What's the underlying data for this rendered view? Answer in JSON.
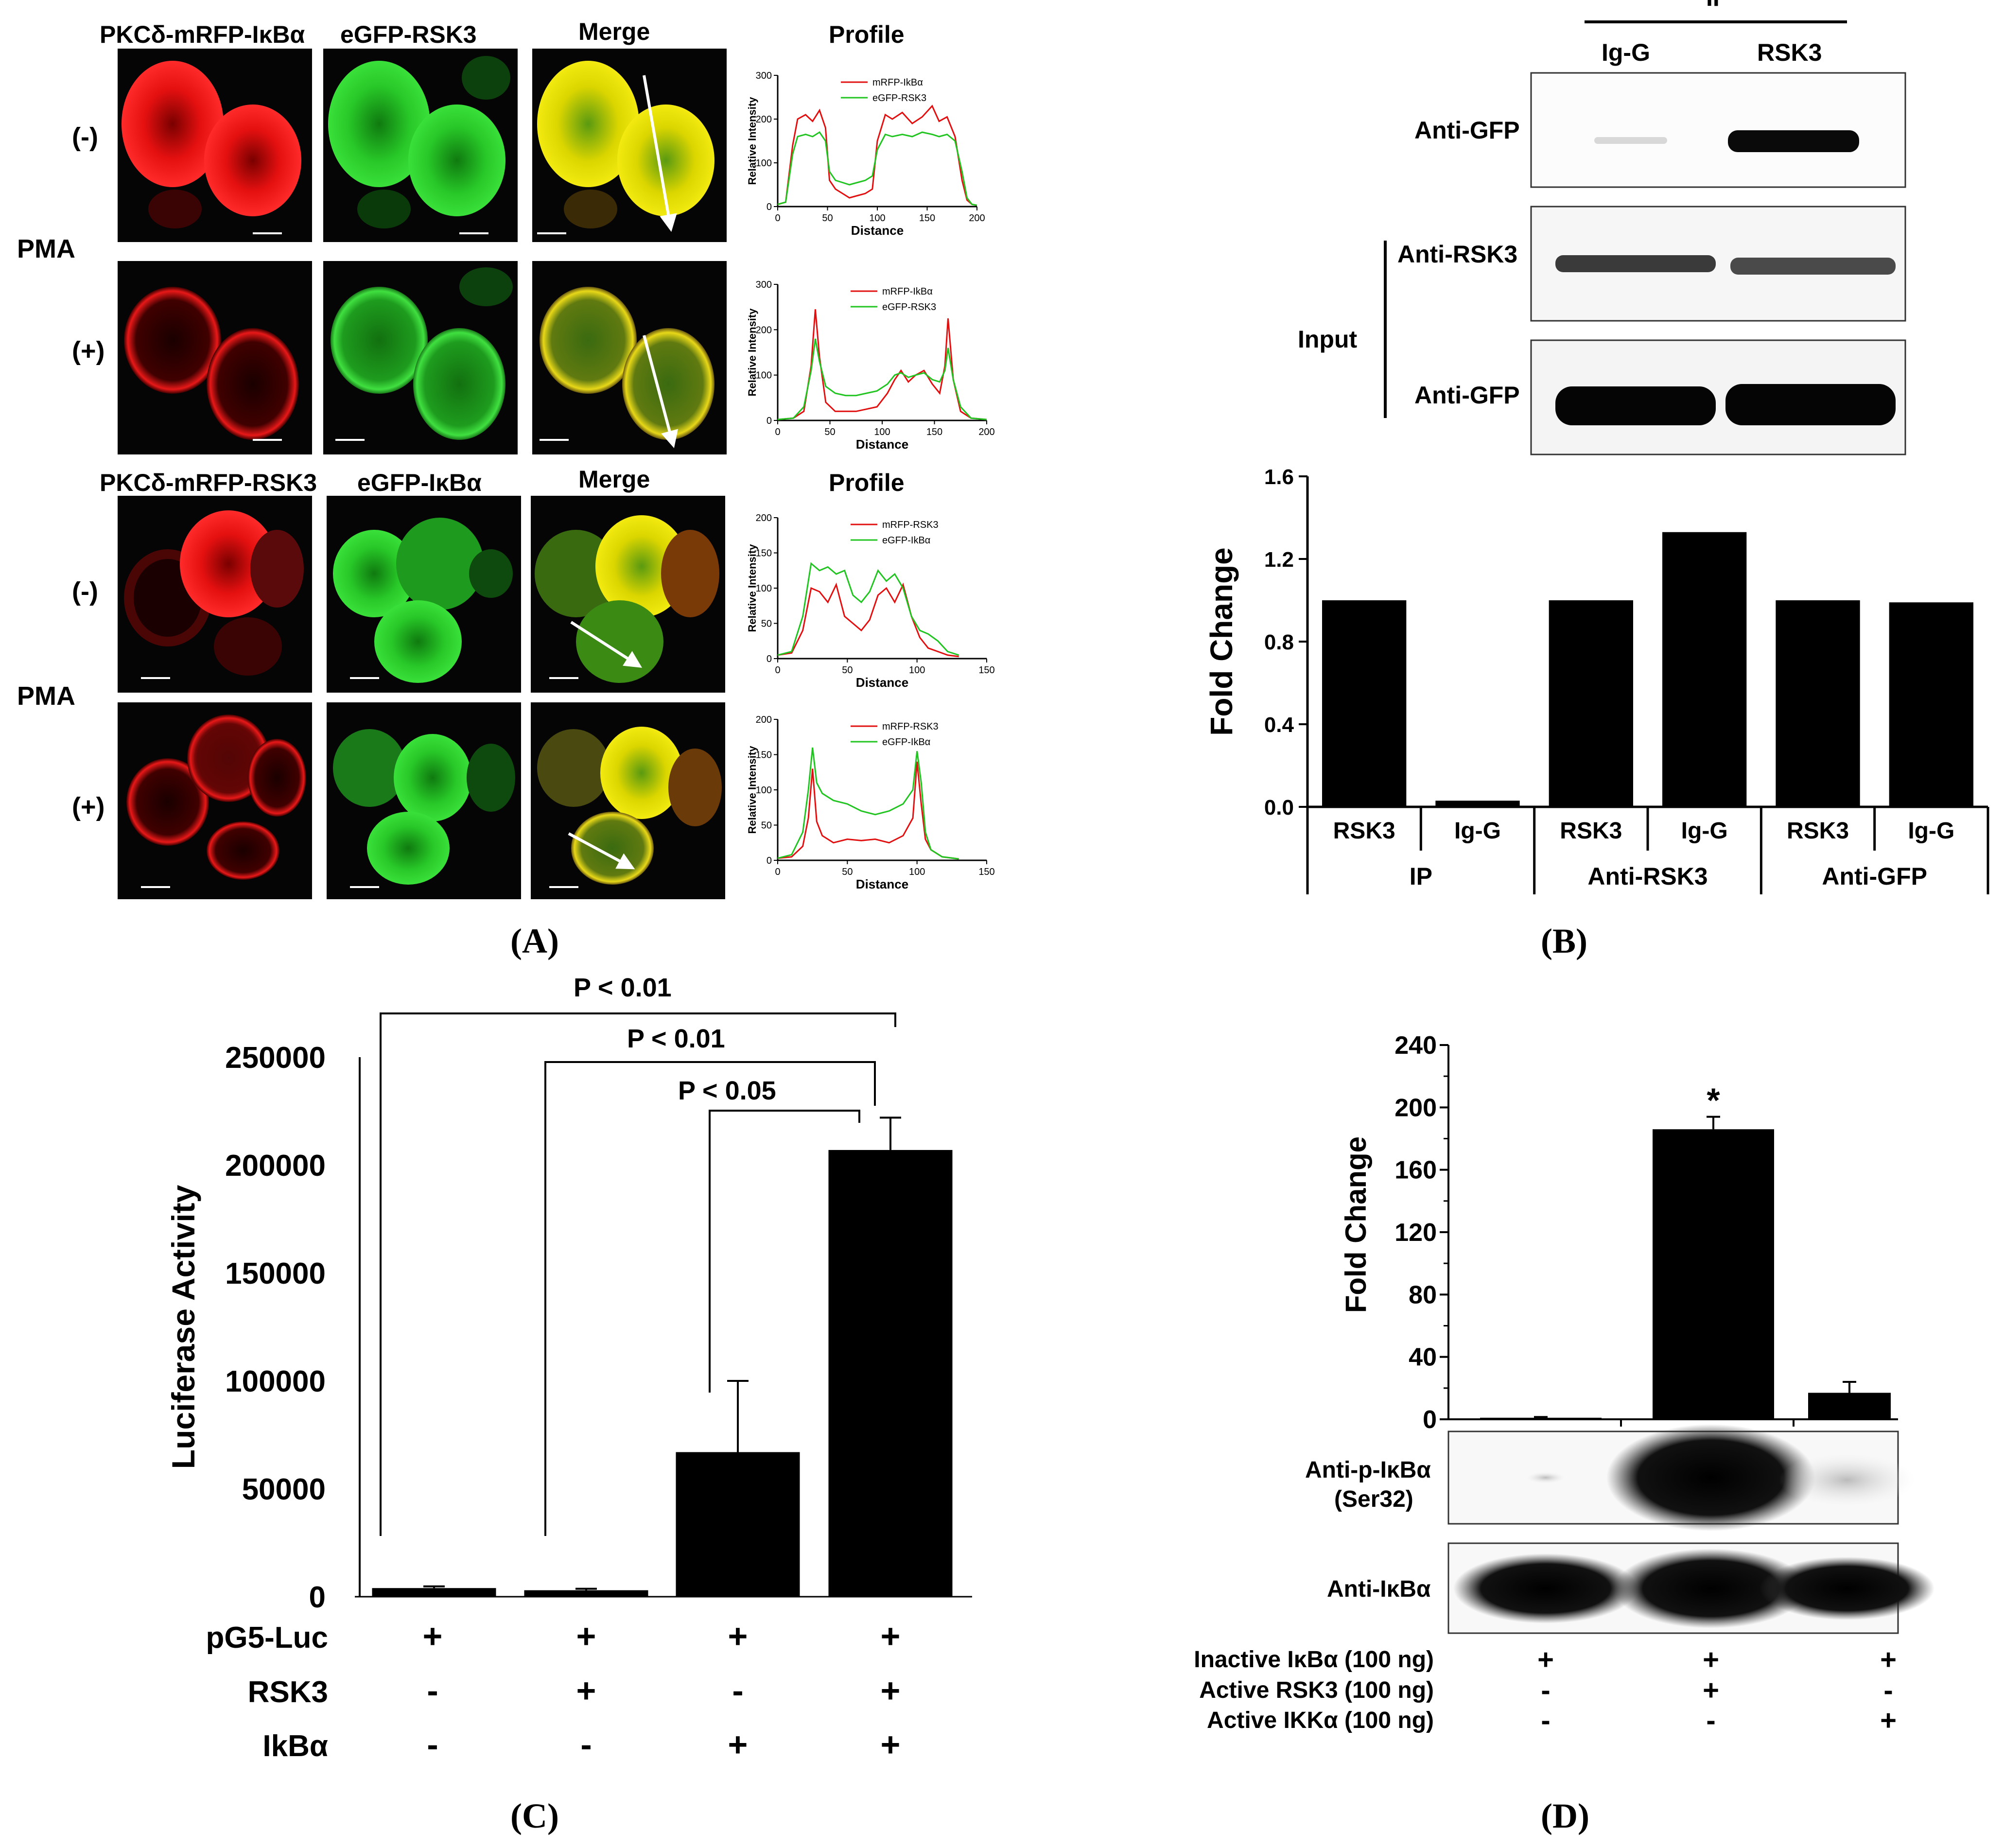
{
  "panel_labels": {
    "a": "(A)",
    "b": "(B)",
    "c": "(C)",
    "d": "(D)"
  },
  "panel_a": {
    "top_set": {
      "headers": [
        "PKCδ-mRFP-IκBα",
        "eGFP-RSK3",
        "Merge",
        "Profile"
      ],
      "treatment": "PMA",
      "row_labels": [
        "(-)",
        "(+)"
      ],
      "legend": [
        "mRFP-IkBα",
        "eGFP-RSK3"
      ]
    },
    "bottom_set": {
      "headers": [
        "PKCδ-mRFP-RSK3",
        "eGFP-IκBα",
        "Merge",
        "Profile"
      ],
      "treatment": "PMA",
      "row_labels": [
        "(-)",
        "(+)"
      ],
      "legend": [
        "mRFP-RSK3",
        "eGFP-IkBα"
      ]
    },
    "profile_ylabel": "Relative Intensity",
    "profile_xlabel": "Distance",
    "colors": {
      "red": "#e01010",
      "green": "#22c422",
      "yellow": "#e8e000",
      "cell_bg": "#0c0c0c"
    }
  },
  "panel_b": {
    "ip_label": "IP",
    "lane_labels": [
      "Ig-G",
      "RSK3"
    ],
    "input_label": "Input",
    "blot_labels": [
      "Anti-GFP",
      "Anti-RSK3",
      "Anti-GFP"
    ]
  },
  "panel_c_labels": {
    "sig": [
      "P < 0.01",
      "P < 0.01",
      "P < 0.05"
    ],
    "rows": [
      {
        "name": "pG5-Luc",
        "marks": [
          "+",
          "+",
          "+",
          "+"
        ]
      },
      {
        "name": "RSK3",
        "marks": [
          "-",
          "+",
          "-",
          "+"
        ]
      },
      {
        "name": "IkBα",
        "marks": [
          "-",
          "-",
          "+",
          "+"
        ]
      }
    ]
  },
  "panel_d_labels": {
    "star": "*",
    "blot_labels": [
      "Anti-p-IκBα",
      "(Ser32)",
      "Anti-IκBα"
    ],
    "rows": [
      {
        "name": "Inactive IκBα (100 ng)",
        "marks": [
          "+",
          "+",
          "+"
        ]
      },
      {
        "name": "Active RSK3 (100 ng)",
        "marks": [
          "-",
          "+",
          "-"
        ]
      },
      {
        "name": "Active IKKα (100 ng)",
        "marks": [
          "-",
          "-",
          "+"
        ]
      }
    ]
  },
  "chart_data": [
    {
      "type": "line",
      "id": "A-top-minus",
      "xlim": [
        0,
        200
      ],
      "ylim": [
        0,
        300
      ],
      "xticks": [
        0,
        50,
        100,
        150,
        200
      ],
      "yticks": [
        0,
        100,
        200,
        300
      ],
      "xlabel": "Distance",
      "ylabel": "Relative Intensity",
      "series": [
        {
          "name": "mRFP-IkBα",
          "color": "#e01010",
          "x": [
            0,
            8,
            15,
            20,
            28,
            35,
            42,
            48,
            52,
            58,
            65,
            72,
            80,
            88,
            95,
            100,
            108,
            115,
            125,
            135,
            145,
            155,
            162,
            170,
            178,
            185,
            190,
            195,
            200
          ],
          "y": [
            5,
            10,
            140,
            200,
            210,
            195,
            220,
            180,
            60,
            40,
            30,
            20,
            25,
            30,
            40,
            150,
            210,
            200,
            215,
            190,
            205,
            230,
            195,
            205,
            160,
            60,
            15,
            5,
            3
          ]
        },
        {
          "name": "eGFP-RSK3",
          "color": "#22c422",
          "x": [
            0,
            8,
            15,
            20,
            28,
            35,
            42,
            48,
            52,
            58,
            65,
            72,
            80,
            88,
            95,
            100,
            108,
            115,
            125,
            135,
            145,
            155,
            162,
            170,
            178,
            185,
            190,
            195,
            200
          ],
          "y": [
            5,
            10,
            120,
            160,
            165,
            160,
            170,
            150,
            80,
            60,
            55,
            50,
            55,
            60,
            70,
            130,
            165,
            160,
            165,
            160,
            170,
            165,
            160,
            165,
            150,
            80,
            20,
            5,
            3
          ]
        }
      ]
    },
    {
      "type": "line",
      "id": "A-top-plus",
      "xlim": [
        0,
        200
      ],
      "ylim": [
        0,
        300
      ],
      "xticks": [
        0,
        50,
        100,
        150,
        200
      ],
      "yticks": [
        0,
        100,
        200,
        300
      ],
      "xlabel": "Distance",
      "ylabel": "Relative Intensity",
      "series": [
        {
          "name": "mRFP-IkBα",
          "color": "#e01010",
          "x": [
            0,
            15,
            25,
            32,
            36,
            40,
            46,
            55,
            65,
            75,
            85,
            95,
            105,
            112,
            118,
            125,
            132,
            140,
            148,
            155,
            160,
            163,
            168,
            175,
            185,
            200
          ],
          "y": [
            2,
            5,
            20,
            120,
            245,
            140,
            40,
            20,
            20,
            20,
            25,
            30,
            60,
            90,
            110,
            85,
            100,
            110,
            80,
            60,
            120,
            225,
            90,
            20,
            5,
            2
          ]
        },
        {
          "name": "eGFP-RSK3",
          "color": "#22c422",
          "x": [
            0,
            15,
            25,
            32,
            36,
            40,
            46,
            55,
            65,
            75,
            85,
            95,
            105,
            112,
            118,
            125,
            132,
            140,
            148,
            155,
            160,
            163,
            168,
            175,
            185,
            200
          ],
          "y": [
            2,
            5,
            30,
            110,
            180,
            130,
            75,
            60,
            55,
            55,
            60,
            65,
            80,
            100,
            105,
            95,
            100,
            105,
            90,
            85,
            110,
            160,
            90,
            30,
            5,
            2
          ]
        }
      ]
    },
    {
      "type": "line",
      "id": "A-bottom-minus",
      "xlim": [
        0,
        150
      ],
      "ylim": [
        0,
        200
      ],
      "xticks": [
        0,
        50,
        100,
        150
      ],
      "yticks": [
        0,
        50,
        100,
        150,
        200
      ],
      "xlabel": "Distance",
      "ylabel": "Relative Intensity",
      "series": [
        {
          "name": "mRFP-RSK3",
          "color": "#e01010",
          "x": [
            0,
            10,
            18,
            24,
            30,
            36,
            42,
            48,
            54,
            60,
            66,
            72,
            78,
            84,
            90,
            96,
            102,
            108,
            115,
            122,
            130
          ],
          "y": [
            5,
            8,
            40,
            100,
            95,
            80,
            105,
            60,
            50,
            40,
            55,
            90,
            100,
            80,
            105,
            60,
            30,
            15,
            10,
            5,
            3
          ]
        },
        {
          "name": "eGFP-IkBα",
          "color": "#22c422",
          "x": [
            0,
            10,
            18,
            24,
            30,
            36,
            42,
            48,
            54,
            60,
            66,
            72,
            78,
            84,
            90,
            96,
            102,
            108,
            115,
            122,
            130
          ],
          "y": [
            5,
            10,
            60,
            135,
            125,
            130,
            120,
            125,
            90,
            80,
            95,
            125,
            110,
            120,
            100,
            60,
            40,
            35,
            25,
            10,
            5
          ]
        }
      ]
    },
    {
      "type": "line",
      "id": "A-bottom-plus",
      "xlim": [
        0,
        150
      ],
      "ylim": [
        0,
        200
      ],
      "xticks": [
        0,
        50,
        100,
        150
      ],
      "yticks": [
        0,
        50,
        100,
        150,
        200
      ],
      "xlabel": "Distance",
      "ylabel": "Relative Intensity",
      "series": [
        {
          "name": "mRFP-RSK3",
          "color": "#e01010",
          "x": [
            0,
            10,
            18,
            22,
            25,
            28,
            32,
            40,
            50,
            60,
            70,
            80,
            90,
            97,
            100,
            103,
            106,
            110,
            118,
            130
          ],
          "y": [
            3,
            5,
            20,
            60,
            130,
            55,
            35,
            25,
            30,
            28,
            30,
            25,
            35,
            60,
            140,
            80,
            30,
            15,
            5,
            2
          ]
        },
        {
          "name": "eGFP-IkBα",
          "color": "#22c422",
          "x": [
            0,
            10,
            18,
            22,
            25,
            28,
            32,
            40,
            50,
            60,
            70,
            80,
            90,
            97,
            100,
            103,
            106,
            110,
            118,
            130
          ],
          "y": [
            3,
            8,
            40,
            100,
            160,
            110,
            95,
            85,
            80,
            70,
            65,
            70,
            80,
            100,
            155,
            110,
            40,
            15,
            5,
            2
          ]
        }
      ]
    },
    {
      "type": "bar",
      "id": "B",
      "ylabel": "Fold Change",
      "ylim": [
        0,
        1.6
      ],
      "yticks": [
        0.0,
        0.4,
        0.8,
        1.2,
        1.6
      ],
      "categories": [
        "RSK3",
        "Ig-G",
        "RSK3",
        "Ig-G",
        "RSK3",
        "Ig-G"
      ],
      "groups": [
        "IP",
        "Anti-RSK3",
        "Anti-GFP"
      ],
      "values": [
        1.0,
        0.03,
        1.0,
        1.33,
        1.0,
        0.99
      ],
      "color": "#000000"
    },
    {
      "type": "bar",
      "id": "C",
      "ylabel": "Luciferase Activity",
      "ylim": [
        0,
        250000
      ],
      "yticks": [
        0,
        50000,
        100000,
        150000,
        200000,
        250000
      ],
      "values": [
        4000,
        3000,
        67000,
        207000
      ],
      "errors": [
        800,
        700,
        33000,
        15000
      ],
      "color": "#000000"
    },
    {
      "type": "bar",
      "id": "D",
      "ylabel": "Fold Change",
      "ylim": [
        0,
        240
      ],
      "yticks": [
        0,
        40,
        80,
        120,
        160,
        200,
        240
      ],
      "values": [
        1,
        186,
        17
      ],
      "errors": [
        0.5,
        8,
        7
      ],
      "color": "#000000"
    }
  ]
}
